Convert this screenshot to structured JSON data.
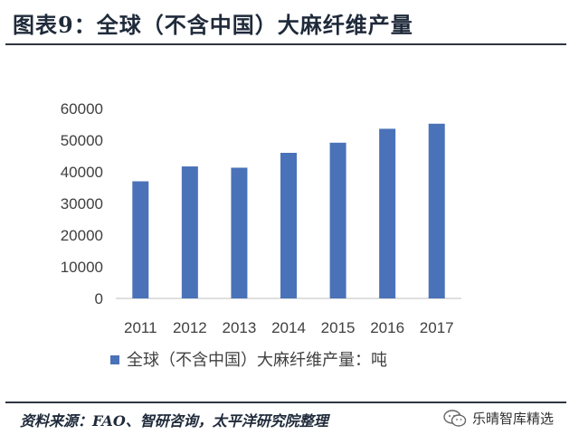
{
  "header": {
    "title": "图表9：全球（不含中国）大麻纤维产量"
  },
  "footer": {
    "source": "资料来源：FAO、智研咨询，太平洋研究院整理",
    "watermark": "乐晴智库精选"
  },
  "chart_data": {
    "type": "bar",
    "categories": [
      "2011",
      "2012",
      "2013",
      "2014",
      "2015",
      "2016",
      "2017"
    ],
    "series": [
      {
        "name": "全球（不含中国）大麻纤维产量：吨",
        "values": [
          37000,
          41700,
          41300,
          46000,
          49200,
          53600,
          55200
        ],
        "color": "#4a72b8"
      }
    ],
    "ylim": [
      0,
      60000
    ],
    "yticks": [
      "0",
      "10000",
      "20000",
      "30000",
      "40000",
      "50000",
      "60000"
    ],
    "grid": false,
    "legend": "bottom"
  }
}
